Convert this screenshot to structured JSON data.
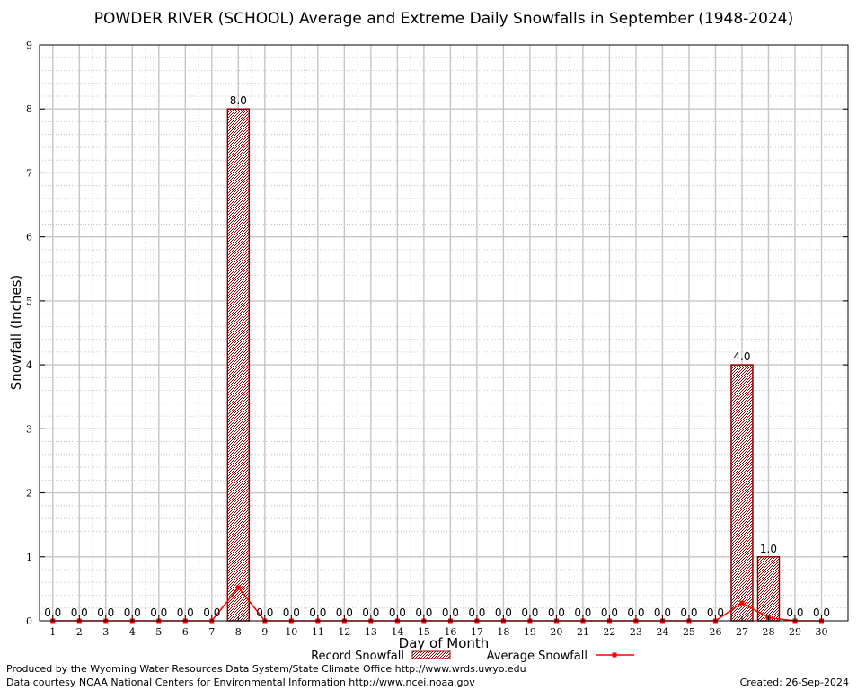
{
  "chart_data": {
    "type": "bar",
    "title": "POWDER RIVER (SCHOOL) Average and Extreme Daily Snowfalls in September (1948-2024)",
    "xlabel": "Day of Month",
    "ylabel": "Snowfall (Inches)",
    "ylim": [
      0,
      9
    ],
    "yticks": [
      "0",
      "1",
      "2",
      "3",
      "4",
      "5",
      "6",
      "7",
      "8",
      "9"
    ],
    "categories": [
      "1",
      "2",
      "3",
      "4",
      "5",
      "6",
      "7",
      "8",
      "9",
      "10",
      "11",
      "12",
      "13",
      "14",
      "15",
      "16",
      "17",
      "18",
      "19",
      "20",
      "21",
      "22",
      "23",
      "24",
      "25",
      "26",
      "27",
      "28",
      "29",
      "30"
    ],
    "grid": true,
    "legend_position": "bottom",
    "series": [
      {
        "name": "Record Snowfall",
        "kind": "bar",
        "color": "#8b0000",
        "values": [
          0,
          0,
          0,
          0,
          0,
          0,
          0,
          8,
          0,
          0,
          0,
          0,
          0,
          0,
          0,
          0,
          0,
          0,
          0,
          0,
          0,
          0,
          0,
          0,
          0,
          0,
          4,
          1,
          0,
          0
        ],
        "labels": [
          "0.0",
          "0.0",
          "0.0",
          "0.0",
          "0.0",
          "0.0",
          "0.0",
          "8.0",
          "0.0",
          "0.0",
          "0.0",
          "0.0",
          "0.0",
          "0.0",
          "0.0",
          "0.0",
          "0.0",
          "0.0",
          "0.0",
          "0.0",
          "0.0",
          "0.0",
          "0.0",
          "0.0",
          "0.0",
          "0.0",
          "4.0",
          "1.0",
          "0.0",
          "0.0"
        ]
      },
      {
        "name": "Average Snowfall",
        "kind": "line",
        "color": "#ff0000",
        "values": [
          0,
          0,
          0,
          0,
          0,
          0,
          0,
          0.52,
          0,
          0,
          0,
          0,
          0,
          0,
          0,
          0,
          0,
          0,
          0,
          0,
          0,
          0,
          0,
          0,
          0,
          0,
          0.28,
          0.05,
          0,
          0
        ]
      }
    ]
  },
  "footer": {
    "produced_by": "Produced by the Wyoming Water Resources Data System/State Climate Office http://www.wrds.uwyo.edu",
    "courtesy": "Data courtesy NOAA National Centers for Environmental Information http://www.ncei.noaa.gov",
    "created": "Created:  26-Sep-2024"
  }
}
